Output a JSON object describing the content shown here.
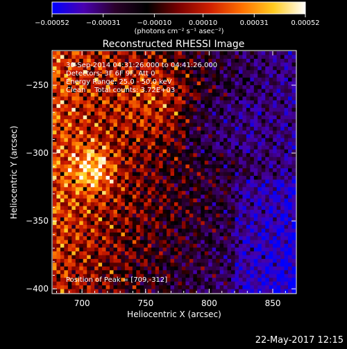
{
  "chart_data": {
    "type": "heatmap",
    "title": "Reconstructed RHESSI Image",
    "xlabel": "Heliocentric X (arcsec)",
    "ylabel": "Heliocentric Y (arcsec)",
    "xlim": [
      677,
      868
    ],
    "ylim": [
      -403,
      -225
    ],
    "x_ticks": [
      700,
      750,
      800,
      850
    ],
    "x_tick_labels": [
      "700",
      "750",
      "800",
      "850"
    ],
    "y_ticks": [
      -250,
      -300,
      -350,
      -400
    ],
    "y_tick_labels": [
      "−250",
      "−300",
      "−350",
      "−400"
    ],
    "grid": false,
    "legend": "none",
    "colorbar": {
      "placement": "top",
      "range": [
        -0.00052,
        0.00052
      ],
      "ticks": [
        -0.00052,
        -0.00031,
        -0.0001,
        0.0001,
        0.00031,
        0.00052
      ],
      "tick_labels": [
        "−0.00052",
        "−0.00031",
        "−0.00010",
        "0.00010",
        "0.00031",
        "0.00052"
      ],
      "units": "(photons cm⁻² s⁻¹ asec⁻²)",
      "colors": [
        "#0000ff",
        "#4a00b0",
        "#2a002a",
        "#000000",
        "#7a0000",
        "#d02000",
        "#ff7000",
        "#ffcc20",
        "#ffffff"
      ]
    },
    "annotations": [
      "30-Sep-2014 04:31:26.000 to 04:41:26.000",
      "Detectors: 3F 6F 9F, Att 0",
      "Energy Range: 25.0 - 50.0 keV",
      "Clean    Total counts: 3.72E+03"
    ],
    "peak_label": "Position of Peak = [709,-312]",
    "peak": [
      709,
      -312
    ],
    "timestamp": "22-May-2017 12:15"
  }
}
